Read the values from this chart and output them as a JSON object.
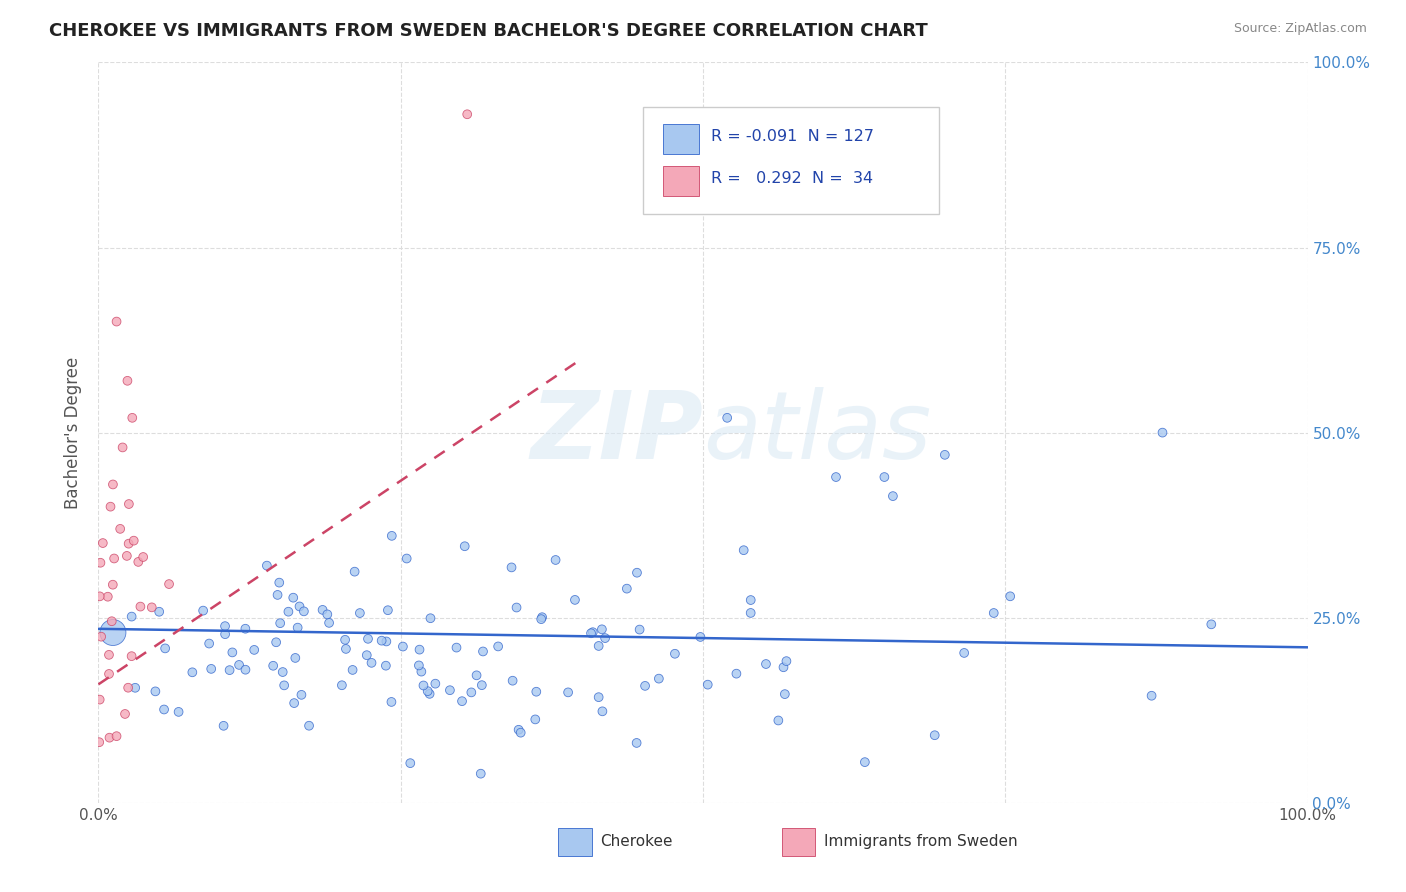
{
  "title": "CHEROKEE VS IMMIGRANTS FROM SWEDEN BACHELOR'S DEGREE CORRELATION CHART",
  "source": "Source: ZipAtlas.com",
  "ylabel": "Bachelor's Degree",
  "watermark": "ZIPatlas",
  "legend_R_blue": "-0.091",
  "legend_N_blue": "127",
  "legend_R_pink": "0.292",
  "legend_N_pink": "34",
  "blue_color": "#a8c8f0",
  "pink_color": "#f4a8b8",
  "blue_line_color": "#3366cc",
  "pink_line_color": "#cc4466",
  "title_color": "#222222",
  "source_color": "#888888",
  "ylabel_color": "#555555",
  "tick_color": "#555555",
  "right_tick_color": "#4488cc",
  "grid_color": "#dddddd",
  "legend_border_color": "#cccccc",
  "legend_text_color": "#2244aa"
}
